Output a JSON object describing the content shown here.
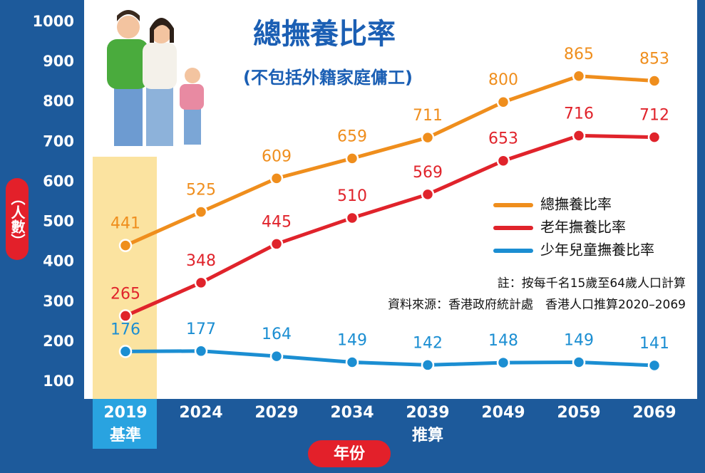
{
  "chart_data": {
    "type": "line",
    "title": "總撫養比率",
    "subtitle": "(不包括外籍家庭傭工)",
    "y_label": "（人數）",
    "x_label": "年份",
    "categories": [
      "2019",
      "2024",
      "2029",
      "2034",
      "2039",
      "2049",
      "2059",
      "2069"
    ],
    "x_sublabels": [
      "基準",
      null,
      null,
      null,
      "推算",
      null,
      null,
      null
    ],
    "series": [
      {
        "name": "總撫養比率",
        "color": "#ef8e1d",
        "values": [
          441,
          525,
          609,
          659,
          711,
          800,
          865,
          853
        ]
      },
      {
        "name": "老年撫養比率",
        "color": "#e0232b",
        "values": [
          265,
          348,
          445,
          510,
          569,
          653,
          716,
          712
        ]
      },
      {
        "name": "少年兒童撫養比率",
        "color": "#1b8ed2",
        "values": [
          176,
          177,
          164,
          149,
          142,
          148,
          149,
          141
        ]
      }
    ],
    "ylim": [
      100,
      1000
    ],
    "yticks": [
      100,
      200,
      300,
      400,
      500,
      600,
      700,
      800,
      900,
      1000
    ],
    "notes": [
      "註：按每千名15歲至64歲人口計算",
      "資料來源：香港政府統計處　香港人口推算2020–2069"
    ]
  }
}
